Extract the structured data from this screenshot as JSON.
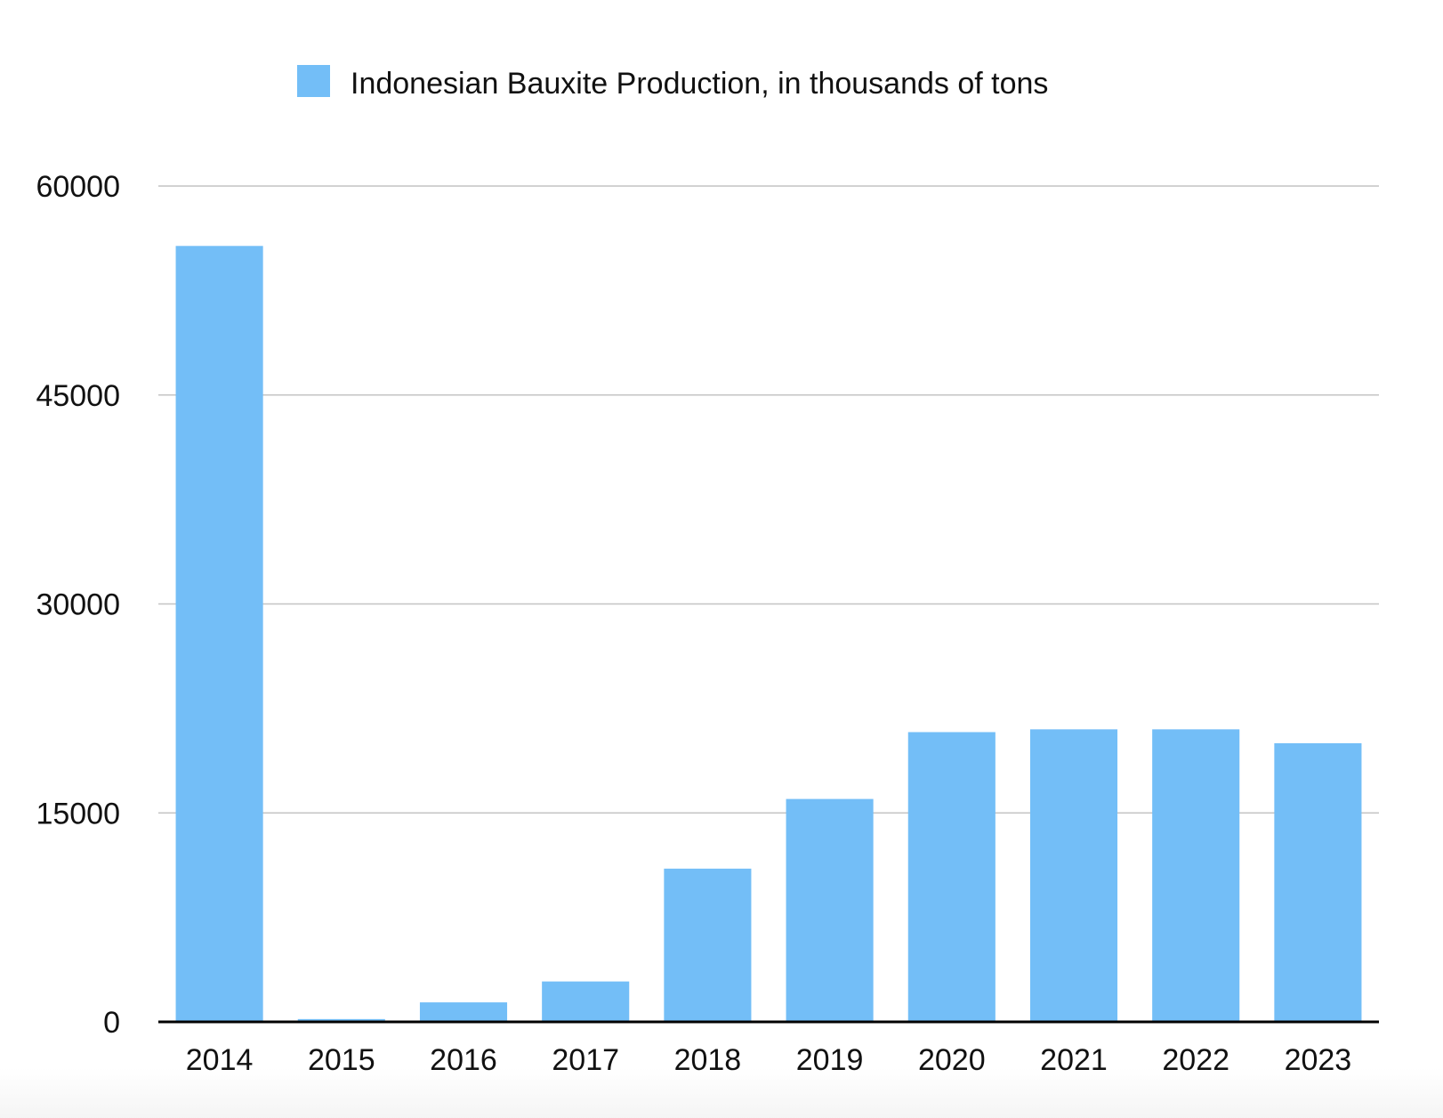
{
  "chart_data": {
    "type": "bar",
    "title": "",
    "xlabel": "",
    "ylabel": "",
    "categories": [
      "2014",
      "2015",
      "2016",
      "2017",
      "2018",
      "2019",
      "2020",
      "2021",
      "2022",
      "2023"
    ],
    "series": [
      {
        "name": "Indonesian Bauxite Production, in thousands of tons",
        "color": "#73BEF7",
        "values": [
          55700,
          200,
          1400,
          2900,
          11000,
          16000,
          20800,
          21000,
          21000,
          20000
        ]
      }
    ],
    "ylim": [
      0,
      60000
    ],
    "yticks": [
      "0",
      "15000",
      "30000",
      "45000",
      "60000"
    ],
    "grid": true,
    "legend": "top-center",
    "gridline_color": "#C4C4C4",
    "baseline_color": "#000000"
  }
}
